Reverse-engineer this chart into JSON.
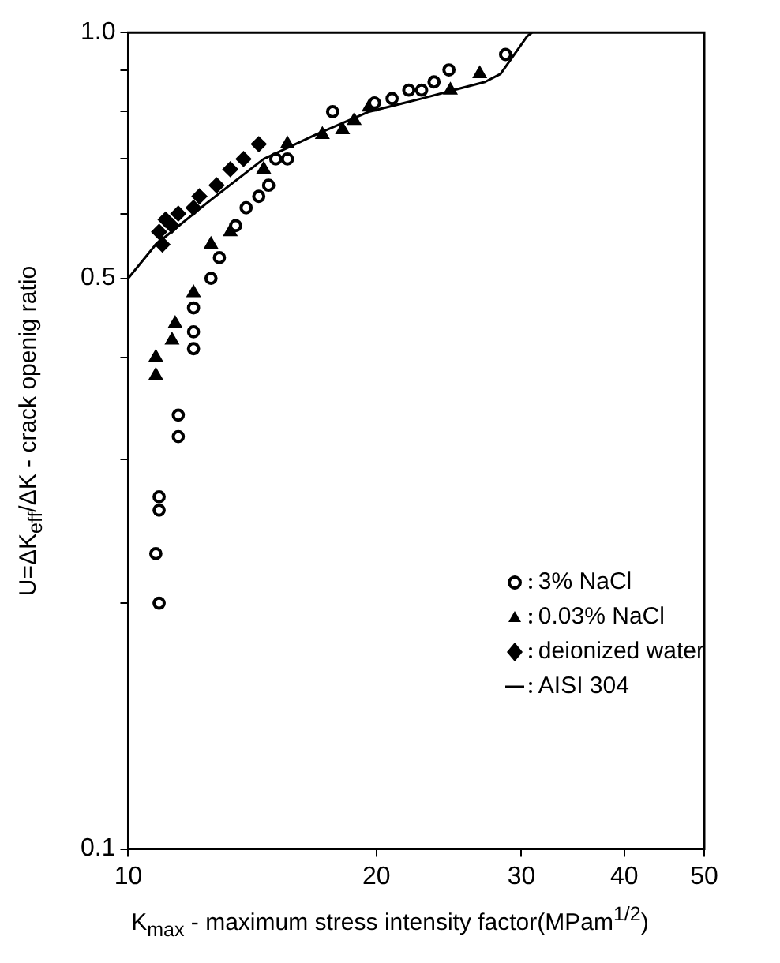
{
  "chart_data": {
    "type": "scatter",
    "xlabel": "K$_{max}$ - maximum stress intensity factor(MPam$^{1/2}$)",
    "ylabel": "U=ΔK$_{eff}$/ΔK - crack openig ratio",
    "log": "xy",
    "grid": false,
    "legend": "bottom right",
    "xlim": [
      10,
      50
    ],
    "xticks": [
      10,
      20,
      30,
      40,
      50
    ],
    "ylim": [
      0.1,
      1.0
    ],
    "yticks": [
      {
        "value": 0.1,
        "label": "0.1"
      },
      {
        "value": 0.2,
        "label": null
      },
      {
        "value": 0.3,
        "label": null
      },
      {
        "value": 0.4,
        "label": null
      },
      {
        "value": 0.5,
        "label": "0.5"
      },
      {
        "value": 0.6,
        "label": null
      },
      {
        "value": 0.7,
        "label": null
      },
      {
        "value": 0.8,
        "label": null
      },
      {
        "value": 0.9,
        "label": null
      },
      {
        "value": 1.0,
        "label": "1.0"
      }
    ],
    "series": [
      {
        "name": "3% NaCl",
        "marker": "circle",
        "color": "#000000",
        "x": [
          28.7,
          24.5,
          23.5,
          22.7,
          21.9,
          20.9,
          19.9,
          17.7,
          15.6,
          15.1,
          14.8,
          14.4,
          13.9,
          13.5,
          12.9,
          12.6,
          12.0,
          12.0,
          12.0,
          11.5,
          11.5,
          10.9,
          10.9,
          10.8,
          10.9
        ],
        "values": [
          0.94,
          0.9,
          0.87,
          0.85,
          0.85,
          0.83,
          0.82,
          0.8,
          0.7,
          0.7,
          0.65,
          0.63,
          0.61,
          0.58,
          0.53,
          0.5,
          0.46,
          0.43,
          0.41,
          0.34,
          0.32,
          0.27,
          0.26,
          0.23,
          0.2
        ]
      },
      {
        "name": "0.03% NaCl",
        "marker": "triangle",
        "color": "#000000",
        "x": [
          26.7,
          24.6,
          19.6,
          18.8,
          18.2,
          17.2,
          15.6,
          14.6,
          13.3,
          12.6,
          12.0,
          11.4,
          11.3,
          10.8,
          10.8
        ],
        "values": [
          0.89,
          0.85,
          0.81,
          0.78,
          0.76,
          0.75,
          0.73,
          0.68,
          0.57,
          0.55,
          0.48,
          0.44,
          0.42,
          0.4,
          0.38
        ]
      },
      {
        "name": "deionized water",
        "marker": "diamond",
        "color": "#000000",
        "x": [
          14.4,
          13.8,
          13.3,
          12.8,
          12.2,
          12.0,
          11.5,
          11.1,
          11.3,
          10.9,
          11.0
        ],
        "values": [
          0.73,
          0.7,
          0.68,
          0.65,
          0.63,
          0.61,
          0.6,
          0.59,
          0.58,
          0.57,
          0.55
        ]
      },
      {
        "name": "AISI 304",
        "type": "line",
        "marker": "none",
        "line_style": "solid",
        "color": "#000000",
        "x": [
          10,
          10.8,
          12.5,
          14.6,
          16.9,
          19.6,
          22.7,
          24.8,
          27.1,
          28.3,
          30.5,
          30.9
        ],
        "values": [
          0.5,
          0.55,
          0.62,
          0.7,
          0.75,
          0.8,
          0.83,
          0.85,
          0.87,
          0.89,
          0.99,
          1.0
        ]
      }
    ]
  }
}
